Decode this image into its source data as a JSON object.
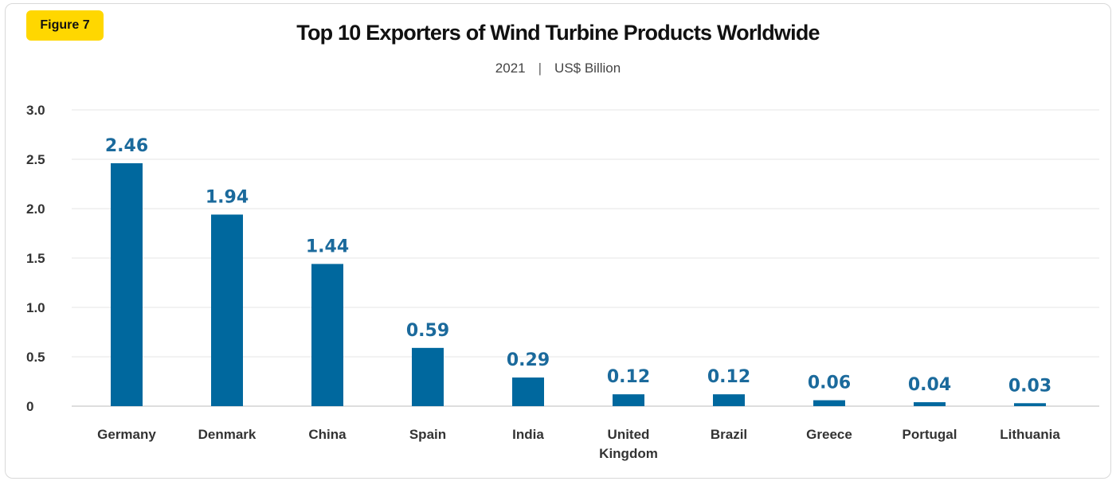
{
  "figure_label": "Figure 7",
  "title": "Top 10 Exporters of Wind Turbine Products Worldwide",
  "subtitle": {
    "year": "2021",
    "separator": "|",
    "unit": "US$ Billion"
  },
  "colors": {
    "bar": "#00689e",
    "data_label": "#1b6a9c",
    "badge": "#ffd700",
    "grid": "#e6e6e6"
  },
  "chart_data": {
    "type": "bar",
    "categories": [
      "Germany",
      "Denmark",
      "China",
      "Spain",
      "India",
      "United Kingdom",
      "Brazil",
      "Greece",
      "Portugal",
      "Lithuania"
    ],
    "category_lines": [
      [
        "Germany"
      ],
      [
        "Denmark"
      ],
      [
        "China"
      ],
      [
        "Spain"
      ],
      [
        "India"
      ],
      [
        "United",
        "Kingdom"
      ],
      [
        "Brazil"
      ],
      [
        "Greece"
      ],
      [
        "Portugal"
      ],
      [
        "Lithuania"
      ]
    ],
    "values": [
      2.46,
      1.94,
      1.44,
      0.59,
      0.29,
      0.12,
      0.12,
      0.06,
      0.04,
      0.03
    ],
    "value_labels": [
      "2.46",
      "1.94",
      "1.44",
      "0.59",
      "0.29",
      "0.12",
      "0.12",
      "0.06",
      "0.04",
      "0.03"
    ],
    "yticks": [
      0,
      0.5,
      1.0,
      1.5,
      2.0,
      2.5,
      3.0
    ],
    "ytick_labels": [
      "0",
      "0.5",
      "1.0",
      "1.5",
      "2.0",
      "2.5",
      "3.0"
    ],
    "ylim": [
      0,
      3.0
    ],
    "grid": true,
    "legend": false
  }
}
